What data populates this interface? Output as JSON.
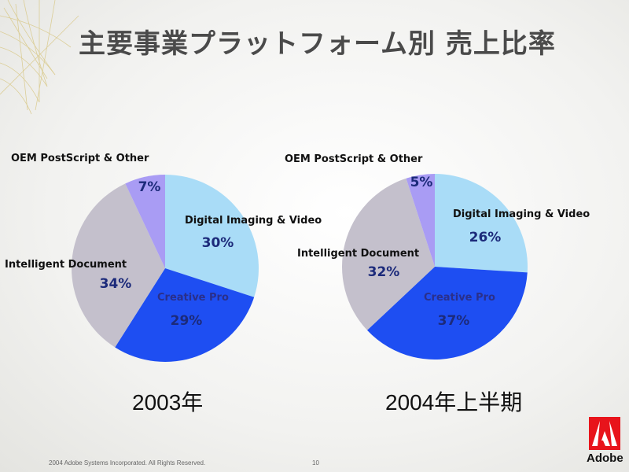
{
  "title": "主要事業プラットフォーム別 売上比率",
  "chart_data": [
    {
      "type": "pie",
      "label": "2003年",
      "slices": [
        {
          "name": "Digital Imaging & Video",
          "value": 30,
          "label": "30%",
          "color": "#a9dcf7"
        },
        {
          "name": "Creative Pro",
          "value": 29,
          "label": "29%",
          "color": "#1e4ef2"
        },
        {
          "name": "Intelligent Document",
          "value": 34,
          "label": "34%",
          "color": "#c4c0cc"
        },
        {
          "name": "OEM PostScript & Other",
          "value": 7,
          "label": "7%",
          "color": "#a99cf4"
        }
      ]
    },
    {
      "type": "pie",
      "label": "2004年上半期",
      "slices": [
        {
          "name": "Digital Imaging & Video",
          "value": 26,
          "label": "26%",
          "color": "#a9dcf7"
        },
        {
          "name": "Creative Pro",
          "value": 37,
          "label": "37%",
          "color": "#1e4ef2"
        },
        {
          "name": "Intelligent Document",
          "value": 32,
          "label": "32%",
          "color": "#c4c0cc"
        },
        {
          "name": "OEM PostScript & Other",
          "value": 5,
          "label": "5%",
          "color": "#a99cf4"
        }
      ]
    }
  ],
  "footer": {
    "copyright": "2004 Adobe Systems Incorporated. All Rights Reserved.",
    "page_number": "10"
  },
  "logo": {
    "text": "Adobe",
    "color": "#e8141b"
  }
}
